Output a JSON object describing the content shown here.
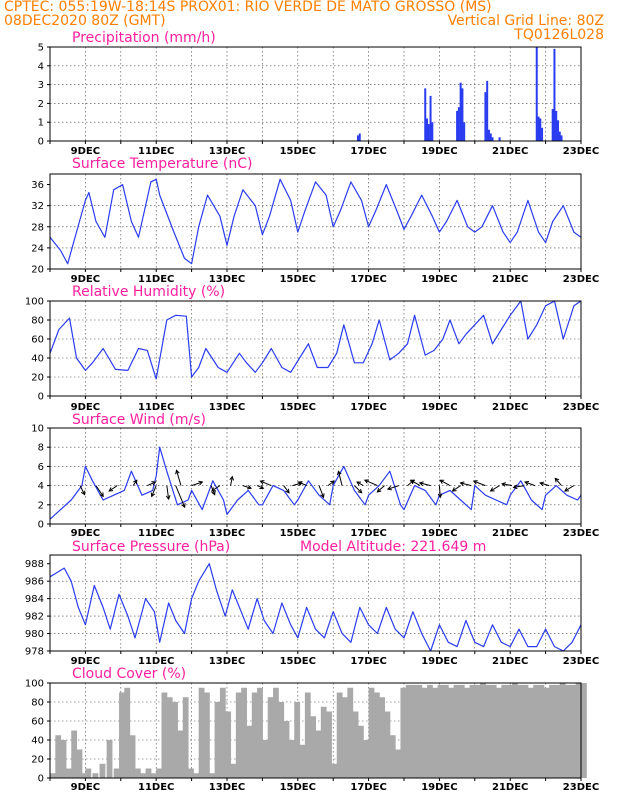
{
  "header": {
    "line1_left": "CPTEC:   055:19W-18:14S   PROX01: RIO VERDE DE MATO GROSSO (MS)",
    "line2_left": "08DEC2020 80Z (GMT)",
    "line2_right": "Vertical Grid Line: 80Z",
    "line3_right": "TQ0126L028"
  },
  "model_altitude_label": "Model Altitude: 221.649 m",
  "x_tick_labels": [
    "9DEC",
    "11DEC",
    "13DEC",
    "15DEC",
    "17DEC",
    "19DEC",
    "21DEC",
    "23DEC"
  ],
  "colors": {
    "header": "#ff7f00",
    "title": "#ff1fa0",
    "line": "#2a3cf0",
    "cloud": "#a9a9a9",
    "grid": "#444444"
  },
  "chart_data": [
    {
      "id": "precip",
      "type": "bar",
      "title": "Precipitation (mm/h)",
      "ylim": [
        0,
        5
      ],
      "yticks": [
        0,
        1,
        2,
        3,
        4,
        5
      ],
      "x": [
        16.7,
        16.75,
        18.6,
        18.65,
        18.7,
        18.75,
        18.8,
        19.5,
        19.55,
        19.6,
        19.65,
        19.7,
        20.3,
        20.35,
        20.4,
        20.45,
        20.5,
        20.7,
        21.75,
        21.8,
        21.85,
        21.9,
        22.2,
        22.25,
        22.3,
        22.35,
        22.4,
        22.45
      ],
      "values": [
        0.3,
        0.4,
        2.8,
        1.2,
        0.9,
        2.4,
        1.0,
        1.6,
        1.8,
        3.1,
        2.8,
        1.0,
        2.6,
        3.2,
        0.6,
        0.4,
        0.2,
        0.2,
        5.0,
        1.3,
        1.2,
        0.7,
        1.7,
        4.9,
        1.6,
        1.1,
        0.5,
        0.3
      ]
    },
    {
      "id": "temp",
      "type": "line",
      "title": "Surface Temperature (nC)",
      "ylim": [
        20,
        38
      ],
      "yticks": [
        20,
        24,
        28,
        32,
        36
      ],
      "x": [
        8.0,
        8.3,
        8.5,
        8.75,
        9.0,
        9.1,
        9.3,
        9.55,
        9.8,
        10.05,
        10.3,
        10.5,
        10.85,
        11.0,
        11.1,
        11.5,
        11.8,
        12.0,
        12.2,
        12.45,
        12.8,
        13.0,
        13.2,
        13.45,
        13.8,
        14.0,
        14.2,
        14.5,
        14.8,
        15.0,
        15.2,
        15.5,
        15.8,
        16.0,
        16.2,
        16.5,
        16.8,
        17.0,
        17.2,
        17.5,
        17.8,
        18.0,
        18.2,
        18.5,
        18.8,
        19.0,
        19.2,
        19.5,
        19.8,
        20.0,
        20.2,
        20.5,
        20.8,
        21.0,
        21.2,
        21.5,
        21.8,
        22.0,
        22.2,
        22.5,
        22.8,
        23.0
      ],
      "values": [
        26,
        23.5,
        21,
        27,
        33,
        34.5,
        29,
        26,
        35,
        36,
        29,
        26,
        36.5,
        37,
        34,
        27,
        22,
        21,
        28,
        34,
        30,
        24.5,
        30,
        35,
        32,
        26.5,
        30,
        37,
        33,
        27,
        31,
        36.5,
        34,
        28,
        31,
        36.5,
        33,
        28,
        31,
        36,
        31,
        27.5,
        30,
        34,
        30,
        27,
        29,
        33,
        28,
        27,
        28,
        32,
        27,
        25,
        27,
        33,
        27,
        25,
        29,
        32,
        27,
        26
      ]
    },
    {
      "id": "rh",
      "type": "line",
      "title": "Relative Humidity (%)",
      "ylim": [
        0,
        100
      ],
      "yticks": [
        0,
        20,
        40,
        60,
        80,
        100
      ],
      "x": [
        8.0,
        8.25,
        8.55,
        8.75,
        9.0,
        9.2,
        9.5,
        9.85,
        10.2,
        10.5,
        10.75,
        11.0,
        11.3,
        11.55,
        11.85,
        12.0,
        12.2,
        12.4,
        12.75,
        13.0,
        13.35,
        13.55,
        13.8,
        14.0,
        14.25,
        14.55,
        14.8,
        15.05,
        15.3,
        15.55,
        15.85,
        16.1,
        16.3,
        16.6,
        16.85,
        17.1,
        17.3,
        17.6,
        17.85,
        18.1,
        18.3,
        18.6,
        18.85,
        19.1,
        19.3,
        19.55,
        19.75,
        20.0,
        20.25,
        20.5,
        20.75,
        21.0,
        21.3,
        21.5,
        21.75,
        22.0,
        22.25,
        22.5,
        22.8,
        23.0
      ],
      "values": [
        45,
        70,
        82,
        40,
        27,
        35,
        50,
        28,
        27,
        50,
        48,
        18,
        80,
        85,
        84,
        20,
        30,
        50,
        30,
        25,
        45,
        35,
        25,
        35,
        50,
        30,
        25,
        40,
        55,
        30,
        30,
        45,
        75,
        35,
        35,
        55,
        80,
        38,
        45,
        55,
        85,
        43,
        48,
        60,
        80,
        55,
        65,
        75,
        85,
        55,
        70,
        85,
        100,
        60,
        75,
        95,
        100,
        60,
        95,
        100
      ]
    },
    {
      "id": "wind",
      "type": "line",
      "title": "Surface Wind (m/s)",
      "ylim": [
        0,
        10
      ],
      "yticks": [
        0,
        2,
        4,
        6,
        8,
        10
      ],
      "x": [
        8.0,
        8.3,
        8.6,
        8.9,
        9.0,
        9.2,
        9.5,
        9.8,
        10.1,
        10.3,
        10.6,
        10.9,
        11.0,
        11.1,
        11.3,
        11.6,
        11.9,
        12.0,
        12.3,
        12.6,
        12.9,
        13.0,
        13.3,
        13.6,
        13.9,
        14.0,
        14.3,
        14.6,
        14.9,
        15.0,
        15.3,
        15.6,
        15.9,
        16.0,
        16.3,
        16.6,
        16.9,
        17.0,
        17.3,
        17.6,
        17.9,
        18.0,
        18.3,
        18.6,
        18.9,
        19.0,
        19.3,
        19.6,
        19.9,
        20.0,
        20.3,
        20.6,
        20.9,
        21.0,
        21.3,
        21.6,
        21.9,
        22.0,
        22.3,
        22.6,
        22.9,
        23.0
      ],
      "values": [
        0.5,
        1.5,
        2.5,
        4.0,
        6.0,
        4.5,
        2.5,
        3.0,
        3.5,
        5.5,
        3.0,
        3.5,
        5.0,
        8.0,
        5.5,
        2.0,
        2.5,
        3.5,
        1.5,
        4.5,
        2.5,
        1.0,
        2.5,
        3.5,
        2.0,
        2.0,
        4.0,
        3.5,
        2.0,
        2.5,
        4.5,
        3.0,
        2.0,
        4.0,
        6.0,
        3.5,
        2.0,
        3.0,
        4.0,
        5.5,
        2.0,
        1.5,
        4.0,
        3.5,
        2.0,
        3.0,
        3.5,
        2.5,
        1.5,
        4.0,
        3.0,
        2.5,
        2.0,
        3.0,
        4.5,
        2.5,
        1.5,
        3.0,
        4.0,
        3.0,
        2.5,
        3.0
      ],
      "arrows": [
        {
          "x": 8.85,
          "u": 0.5,
          "v": -1.0
        },
        {
          "x": 9.3,
          "u": 0.8,
          "v": -1.2
        },
        {
          "x": 9.9,
          "u": -0.9,
          "v": -0.6
        },
        {
          "x": 10.35,
          "u": 0.4,
          "v": 0.6
        },
        {
          "x": 10.75,
          "u": 0.9,
          "v": 0.4
        },
        {
          "x": 11.0,
          "u": -0.5,
          "v": -1.2
        },
        {
          "x": 11.3,
          "u": 0.2,
          "v": -1.5
        },
        {
          "x": 11.55,
          "u": 1.0,
          "v": -2.4
        },
        {
          "x": 11.7,
          "u": -0.5,
          "v": 1.7
        },
        {
          "x": 12.0,
          "u": 1.2,
          "v": 0.4
        },
        {
          "x": 12.55,
          "u": 0.4,
          "v": -1.0
        },
        {
          "x": 12.8,
          "u": -0.9,
          "v": -0.6
        },
        {
          "x": 13.1,
          "u": 0.2,
          "v": 1.0
        },
        {
          "x": 13.45,
          "u": 0.9,
          "v": -0.3
        },
        {
          "x": 13.85,
          "u": 0.7,
          "v": -0.3
        },
        {
          "x": 14.25,
          "u": -1.2,
          "v": 0.5
        },
        {
          "x": 14.6,
          "u": 0.6,
          "v": -0.8
        },
        {
          "x": 14.85,
          "u": 1.0,
          "v": 0.3
        },
        {
          "x": 15.25,
          "u": -0.9,
          "v": 0.4
        },
        {
          "x": 15.6,
          "u": 0.5,
          "v": -1.3
        },
        {
          "x": 15.85,
          "u": 0.7,
          "v": 0.5
        },
        {
          "x": 16.25,
          "u": -0.4,
          "v": 1.6
        },
        {
          "x": 16.6,
          "u": 0.8,
          "v": -0.8
        },
        {
          "x": 16.85,
          "u": -0.7,
          "v": 0.4
        },
        {
          "x": 17.25,
          "u": -1.4,
          "v": 0.6
        },
        {
          "x": 17.45,
          "u": -0.8,
          "v": -0.7
        },
        {
          "x": 17.85,
          "u": -1.2,
          "v": -0.4
        },
        {
          "x": 18.1,
          "u": 0.7,
          "v": 0.6
        },
        {
          "x": 18.45,
          "u": -1.0,
          "v": 0.6
        },
        {
          "x": 18.75,
          "u": -1.2,
          "v": 0.3
        },
        {
          "x": 19.0,
          "u": 0.1,
          "v": -1.3
        },
        {
          "x": 19.3,
          "u": -1.1,
          "v": 0.6
        },
        {
          "x": 19.6,
          "u": -0.9,
          "v": -0.6
        },
        {
          "x": 19.9,
          "u": -1.2,
          "v": 0.3
        },
        {
          "x": 20.3,
          "u": -1.3,
          "v": 0.5
        },
        {
          "x": 20.7,
          "u": -1.0,
          "v": -0.6
        },
        {
          "x": 21.05,
          "u": -1.1,
          "v": 0.2
        },
        {
          "x": 21.4,
          "u": -1.2,
          "v": -0.2
        },
        {
          "x": 21.7,
          "u": -1.1,
          "v": 0.4
        },
        {
          "x": 22.1,
          "u": -1.0,
          "v": 0.3
        },
        {
          "x": 22.45,
          "u": -0.7,
          "v": 0.8
        },
        {
          "x": 22.8,
          "u": -1.0,
          "v": -0.6
        }
      ]
    },
    {
      "id": "pressure",
      "type": "line",
      "title": "Surface Pressure (hPa)",
      "ylim": [
        978,
        989
      ],
      "yticks": [
        978,
        980,
        982,
        984,
        986,
        988
      ],
      "x": [
        8.0,
        8.2,
        8.4,
        8.6,
        8.8,
        9.0,
        9.25,
        9.5,
        9.7,
        9.95,
        10.2,
        10.4,
        10.7,
        10.95,
        11.1,
        11.35,
        11.55,
        11.8,
        12.0,
        12.2,
        12.5,
        12.7,
        12.95,
        13.15,
        13.4,
        13.6,
        13.85,
        14.05,
        14.3,
        14.55,
        14.8,
        15.0,
        15.25,
        15.5,
        15.75,
        16.0,
        16.25,
        16.5,
        16.75,
        17.0,
        17.25,
        17.5,
        17.75,
        18.0,
        18.25,
        18.5,
        18.75,
        19.0,
        19.25,
        19.5,
        19.75,
        20.0,
        20.25,
        20.5,
        20.75,
        21.0,
        21.25,
        21.5,
        21.75,
        22.0,
        22.25,
        22.5,
        22.75,
        23.0
      ],
      "values": [
        986.5,
        987.0,
        987.5,
        986.0,
        983.0,
        981.0,
        985.5,
        983.0,
        980.5,
        984.5,
        982.0,
        979.5,
        984.0,
        982.5,
        979.0,
        983.5,
        981.5,
        980.0,
        984.0,
        986.0,
        988.0,
        985.0,
        982.0,
        985.0,
        982.5,
        980.5,
        984.0,
        981.5,
        980.0,
        983.5,
        981.0,
        979.5,
        983.0,
        980.5,
        979.5,
        982.5,
        980.0,
        979.0,
        983.0,
        981.0,
        980.0,
        983.0,
        980.5,
        979.5,
        982.5,
        980.0,
        978.0,
        981.0,
        979.0,
        978.5,
        981.5,
        979.0,
        978.5,
        981.0,
        979.0,
        978.5,
        980.5,
        978.5,
        978.5,
        980.5,
        978.5,
        978.0,
        979.0,
        981.0
      ]
    },
    {
      "id": "cloud",
      "type": "area",
      "title": "Cloud Cover (%)",
      "ylim": [
        0,
        100
      ],
      "yticks": [
        0,
        20,
        40,
        60,
        80,
        100
      ],
      "x": [
        8.0,
        8.15,
        8.3,
        8.45,
        8.6,
        8.75,
        8.9,
        9.0,
        9.2,
        9.4,
        9.6,
        9.8,
        9.95,
        10.1,
        10.25,
        10.4,
        10.55,
        10.7,
        10.85,
        11.0,
        11.15,
        11.3,
        11.45,
        11.6,
        11.75,
        11.9,
        12.05,
        12.2,
        12.35,
        12.5,
        12.65,
        12.8,
        12.95,
        13.1,
        13.25,
        13.4,
        13.55,
        13.7,
        13.85,
        14.0,
        14.15,
        14.3,
        14.45,
        14.6,
        14.75,
        14.9,
        15.05,
        15.2,
        15.35,
        15.5,
        15.65,
        15.8,
        15.95,
        16.1,
        16.25,
        16.4,
        16.55,
        16.7,
        16.85,
        17.0,
        17.15,
        17.3,
        17.45,
        17.6,
        17.75,
        17.9,
        18.05,
        18.2,
        18.35,
        18.5,
        18.65,
        18.8,
        18.95,
        19.1,
        19.25,
        19.4,
        19.55,
        19.7,
        19.85,
        20.0,
        20.15,
        20.3,
        20.45,
        20.6,
        20.75,
        20.9,
        21.05,
        21.2,
        21.35,
        21.5,
        21.65,
        21.8,
        21.95,
        22.1,
        22.25,
        22.4,
        22.55,
        22.7,
        22.85,
        23.0
      ],
      "values": [
        5,
        45,
        40,
        10,
        50,
        30,
        5,
        10,
        5,
        15,
        40,
        10,
        90,
        95,
        45,
        10,
        5,
        10,
        5,
        10,
        90,
        85,
        80,
        50,
        85,
        10,
        5,
        95,
        90,
        5,
        80,
        95,
        70,
        15,
        90,
        95,
        55,
        90,
        95,
        40,
        85,
        95,
        80,
        60,
        40,
        80,
        35,
        90,
        65,
        50,
        75,
        70,
        15,
        90,
        85,
        95,
        70,
        55,
        40,
        95,
        90,
        85,
        70,
        45,
        30,
        95,
        98,
        98,
        98,
        95,
        98,
        95,
        98,
        98,
        95,
        98,
        98,
        95,
        98,
        98,
        100,
        98,
        98,
        95,
        98,
        98,
        100,
        98,
        98,
        95,
        98,
        98,
        95,
        98,
        98,
        100,
        98,
        98,
        100,
        100
      ]
    }
  ]
}
